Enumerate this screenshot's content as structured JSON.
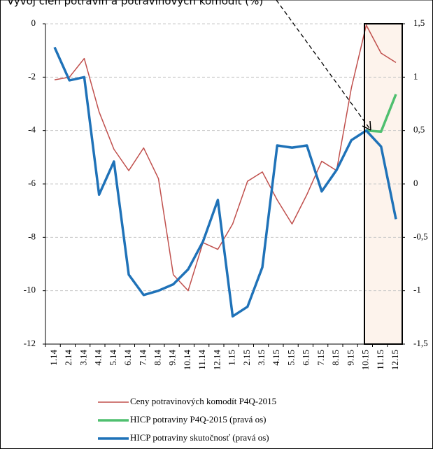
{
  "chart_data": {
    "type": "line",
    "title": "Vývoj cien potravín a potravinových komodít (%)",
    "categories": [
      "1.14",
      "2.14",
      "3.14",
      "4.14",
      "5.14",
      "6.14",
      "7.14",
      "8.14",
      "9.14",
      "10.14",
      "11.14",
      "12.14",
      "1.15",
      "2.15",
      "3.15",
      "4.15",
      "5.15",
      "6.15",
      "7.15",
      "8.15",
      "9.15",
      "10.15",
      "11.15",
      "12.15"
    ],
    "series": [
      {
        "name": "Ceny potravinových komodít P4Q-2015",
        "color": "#c0504d",
        "axis": "y",
        "values": [
          -2.1,
          -2.0,
          -1.3,
          -3.3,
          -4.7,
          -5.5,
          -4.65,
          -5.8,
          -9.4,
          -10.0,
          -8.2,
          -8.45,
          -7.5,
          -5.9,
          -5.55,
          -6.6,
          -7.5,
          -6.4,
          -5.15,
          -5.5,
          -2.4,
          -0.05,
          -1.1,
          -1.45
        ]
      },
      {
        "name": "HICP potraviny P4Q-2015 (pravá os)",
        "color": "#4fbf6f",
        "axis": "y2",
        "values": [
          null,
          null,
          null,
          null,
          null,
          null,
          null,
          null,
          null,
          null,
          null,
          null,
          null,
          null,
          null,
          null,
          null,
          null,
          null,
          null,
          null,
          0.5,
          0.49,
          0.84
        ]
      },
      {
        "name": "HICP potraviny skutočnosť (pravá os)",
        "color": "#1f72b8",
        "axis": "y2",
        "values": [
          1.28,
          0.97,
          1.0,
          -0.1,
          0.21,
          -0.85,
          -1.04,
          -1.0,
          -0.94,
          -0.8,
          -0.54,
          -0.15,
          -1.24,
          -1.15,
          -0.78,
          0.36,
          0.34,
          0.36,
          -0.07,
          0.13,
          0.41,
          0.5,
          0.35,
          -0.33
        ]
      }
    ],
    "ylim": [
      -12,
      0
    ],
    "yticks": [
      0,
      -2,
      -4,
      -6,
      -8,
      -10,
      -12
    ],
    "y2lim": [
      -1.5,
      1.5
    ],
    "y2ticks": [
      {
        "value": 1.5,
        "label": "1,5"
      },
      1,
      {
        "value": 0.5,
        "label": "0,5"
      },
      0,
      {
        "value": -0.5,
        "label": "-0,5"
      },
      -1,
      {
        "value": -1.5,
        "label": "-1,5"
      }
    ],
    "grid": true
  }
}
